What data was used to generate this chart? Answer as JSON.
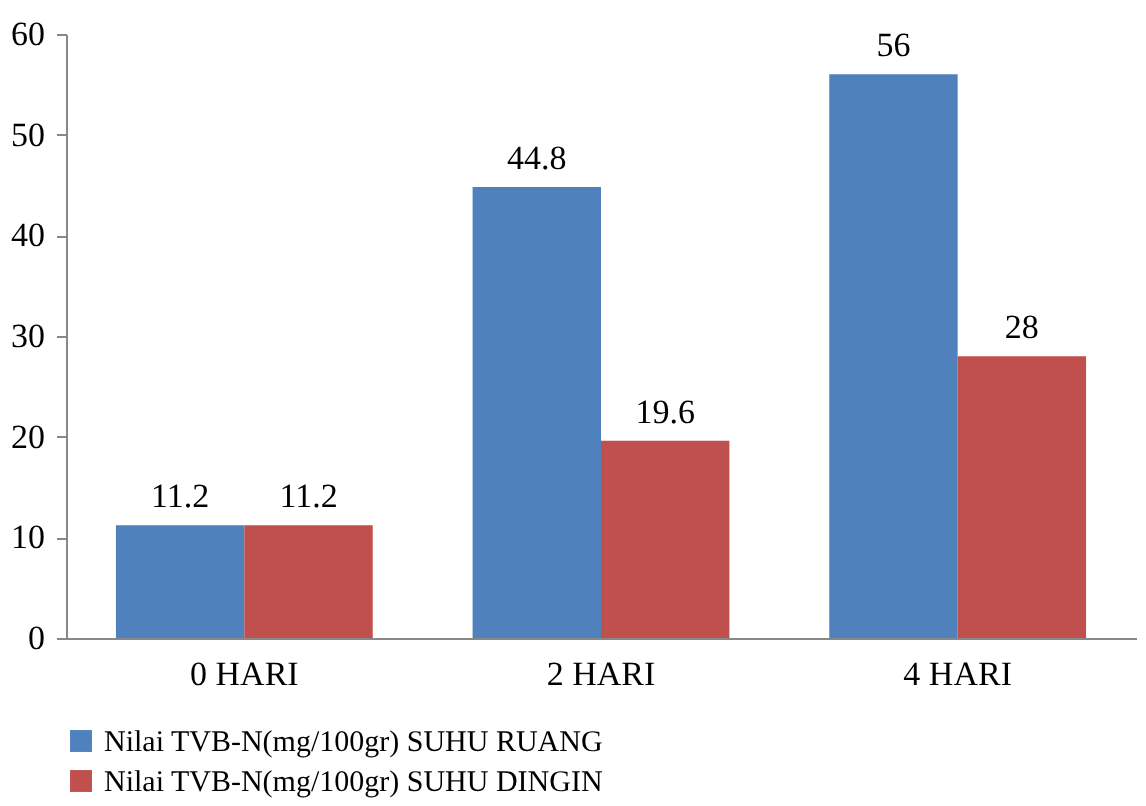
{
  "chart_data": {
    "type": "bar",
    "categories": [
      "0 HARI",
      "2 HARI",
      "4 HARI"
    ],
    "series": [
      {
        "name": "Nilai TVB-N(mg/100gr) SUHU RUANG",
        "color": "#4f81bd",
        "values": [
          11.2,
          44.8,
          56
        ]
      },
      {
        "name": "Nilai TVB-N(mg/100gr) SUHU DINGIN",
        "color": "#c0504d",
        "values": [
          11.2,
          19.6,
          28
        ]
      }
    ],
    "ylim": [
      0,
      60
    ],
    "yticks": [
      0,
      10,
      20,
      30,
      40,
      50,
      60
    ],
    "grid": false,
    "legend": "bottom",
    "data_labels": true
  }
}
